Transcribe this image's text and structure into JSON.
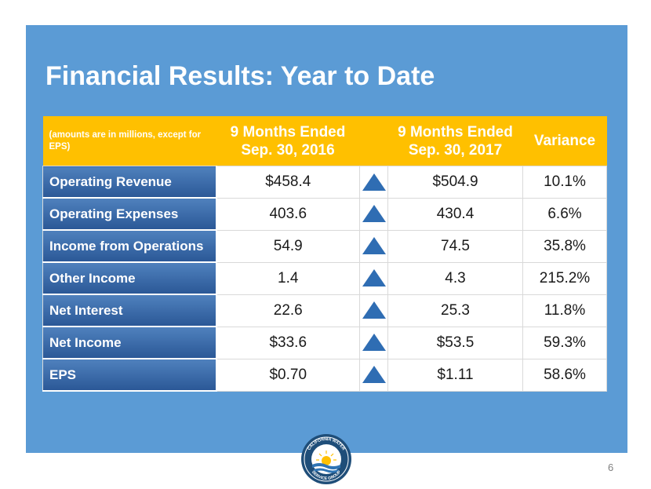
{
  "slide": {
    "title": "Financial Results: Year to Date",
    "page_number": "6"
  },
  "table": {
    "headers": {
      "note": "(amounts are in millions, except for EPS)",
      "col1": "9 Months Ended Sep. 30, 2016",
      "col2": "9 Months Ended Sep. 30, 2017",
      "col3": "Variance"
    },
    "rows": [
      {
        "label": "Operating Revenue",
        "v2016": "$458.4",
        "trend": "up-arrow-icon",
        "v2017": "$504.9",
        "variance": "10.1%"
      },
      {
        "label": "Operating Expenses",
        "v2016": "403.6",
        "trend": "up-arrow-icon",
        "v2017": "430.4",
        "variance": "6.6%"
      },
      {
        "label": "Income from Operations",
        "v2016": "54.9",
        "trend": "up-arrow-icon",
        "v2017": "74.5",
        "variance": "35.8%"
      },
      {
        "label": "Other Income",
        "v2016": "1.4",
        "trend": "up-arrow-icon",
        "v2017": "4.3",
        "variance": "215.2%"
      },
      {
        "label": "Net Interest",
        "v2016": "22.6",
        "trend": "up-arrow-icon",
        "v2017": "25.3",
        "variance": "11.8%"
      },
      {
        "label": "Net Income",
        "v2016": "$33.6",
        "trend": "up-arrow-icon",
        "v2017": "$53.5",
        "variance": "59.3%"
      },
      {
        "label": "EPS",
        "v2016": "$0.70",
        "trend": "up-arrow-icon",
        "v2017": "$1.11",
        "variance": "58.6%"
      }
    ]
  },
  "logo": {
    "text_top": "CALIFORNIA WATER",
    "text_bottom": "SERVICE GROUP"
  },
  "colors": {
    "panel": "#5b9bd5",
    "header": "#ffc000",
    "row_label": "#2b5897",
    "arrow": "#2f6db3"
  }
}
